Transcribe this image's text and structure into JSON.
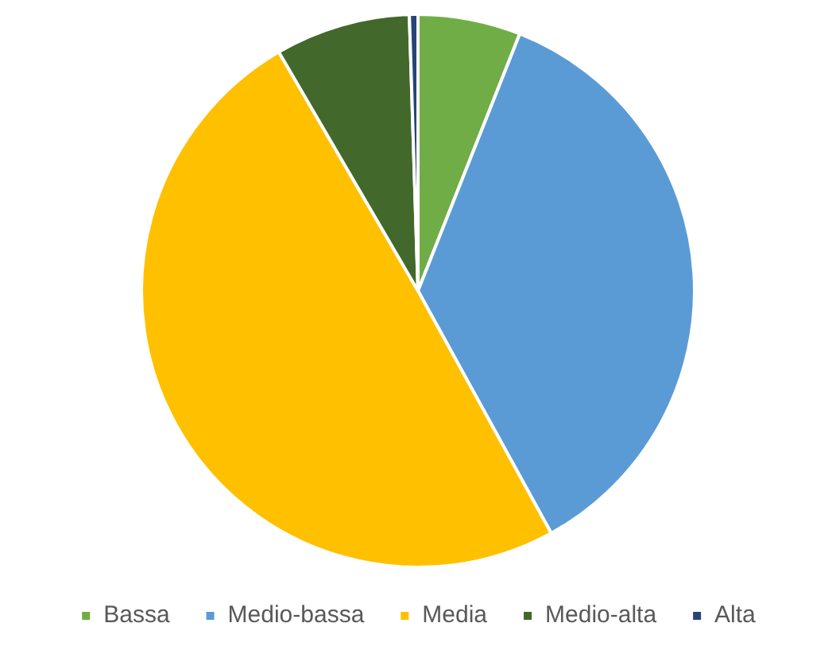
{
  "chart_data": {
    "type": "pie",
    "categories": [
      "Bassa",
      "Medio-bassa",
      "Media",
      "Medio-alta",
      "Alta"
    ],
    "values": [
      6,
      36,
      49.6,
      7.9,
      0.5
    ],
    "colors": [
      "#70ad47",
      "#5b9bd5",
      "#ffc000",
      "#43682b",
      "#264478"
    ],
    "legend": "bottom"
  }
}
